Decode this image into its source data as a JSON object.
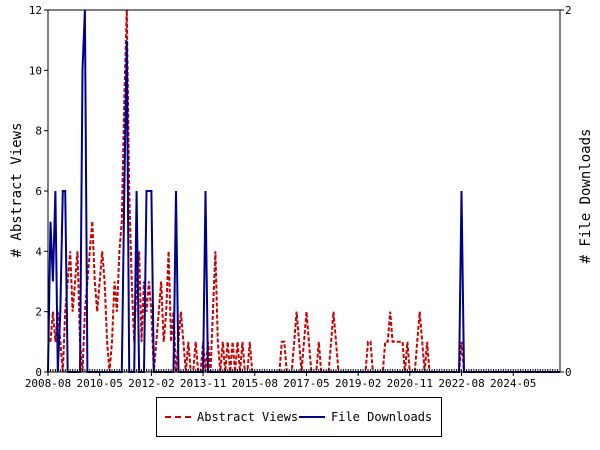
{
  "chart_data": {
    "type": "line",
    "x_ticks": [
      "2008-08",
      "2010-05",
      "2012-02",
      "2013-11",
      "2015-08",
      "2017-05",
      "2019-02",
      "2020-11",
      "2022-08",
      "2024-05"
    ],
    "x_range": [
      "2008-08",
      "2025-12"
    ],
    "ylabel": "# Abstract Views",
    "y2label": "# File Downloads",
    "ylim": [
      0,
      12
    ],
    "y_ticks": [
      0,
      2,
      4,
      6,
      8,
      10,
      12
    ],
    "y2lim": [
      0,
      2
    ],
    "y2_ticks": [
      0,
      2
    ],
    "grid": false,
    "legend_position": "bottom",
    "series": [
      {
        "name": "Abstract Views",
        "axis": "left",
        "color": "#cc0000",
        "style": "dashed",
        "points": [
          [
            "2008-09",
            1
          ],
          [
            "2008-10",
            2
          ],
          [
            "2008-11",
            1
          ],
          [
            "2008-12",
            2
          ],
          [
            "2009-01",
            1
          ],
          [
            "2009-02",
            0
          ],
          [
            "2009-03",
            2
          ],
          [
            "2009-04",
            3
          ],
          [
            "2009-05",
            4
          ],
          [
            "2009-06",
            2
          ],
          [
            "2009-07",
            3
          ],
          [
            "2009-08",
            4
          ],
          [
            "2009-09",
            1
          ],
          [
            "2009-10",
            0
          ],
          [
            "2009-11",
            2
          ],
          [
            "2009-12",
            3
          ],
          [
            "2010-01",
            4
          ],
          [
            "2010-02",
            5
          ],
          [
            "2010-03",
            3
          ],
          [
            "2010-04",
            2
          ],
          [
            "2010-05",
            3
          ],
          [
            "2010-06",
            4
          ],
          [
            "2010-07",
            3
          ],
          [
            "2010-08",
            1
          ],
          [
            "2010-09",
            0
          ],
          [
            "2010-10",
            1
          ],
          [
            "2010-11",
            3
          ],
          [
            "2010-12",
            2
          ],
          [
            "2011-01",
            4
          ],
          [
            "2011-02",
            5
          ],
          [
            "2011-03",
            9
          ],
          [
            "2011-04",
            12
          ],
          [
            "2011-05",
            6
          ],
          [
            "2011-06",
            3
          ],
          [
            "2011-07",
            1
          ],
          [
            "2011-08",
            3
          ],
          [
            "2011-09",
            4
          ],
          [
            "2011-10",
            1
          ],
          [
            "2011-11",
            3
          ],
          [
            "2011-12",
            2
          ],
          [
            "2012-01",
            3
          ],
          [
            "2012-02",
            2
          ],
          [
            "2012-03",
            0
          ],
          [
            "2012-04",
            1
          ],
          [
            "2012-05",
            2
          ],
          [
            "2012-06",
            3
          ],
          [
            "2012-07",
            1
          ],
          [
            "2012-08",
            2
          ],
          [
            "2012-09",
            4
          ],
          [
            "2012-10",
            1
          ],
          [
            "2012-11",
            2
          ],
          [
            "2012-12",
            0
          ],
          [
            "2013-01",
            1
          ],
          [
            "2013-02",
            2
          ],
          [
            "2013-03",
            1
          ],
          [
            "2013-04",
            0
          ],
          [
            "2013-05",
            1
          ],
          [
            "2013-06",
            0
          ],
          [
            "2013-07",
            0
          ],
          [
            "2013-08",
            1
          ],
          [
            "2013-09",
            0
          ],
          [
            "2013-10",
            0
          ],
          [
            "2013-11",
            1
          ],
          [
            "2013-12",
            0
          ],
          [
            "2014-01",
            1
          ],
          [
            "2014-02",
            0
          ],
          [
            "2014-03",
            2
          ],
          [
            "2014-04",
            4
          ],
          [
            "2014-05",
            1
          ],
          [
            "2014-06",
            0
          ],
          [
            "2014-07",
            1
          ],
          [
            "2014-08",
            0
          ],
          [
            "2014-09",
            1
          ],
          [
            "2014-10",
            0
          ],
          [
            "2014-11",
            1
          ],
          [
            "2014-12",
            0
          ],
          [
            "2015-01",
            1
          ],
          [
            "2015-02",
            0
          ],
          [
            "2015-03",
            1
          ],
          [
            "2015-04",
            0
          ],
          [
            "2015-05",
            0
          ],
          [
            "2015-06",
            1
          ],
          [
            "2015-07",
            0
          ],
          [
            "2015-08",
            0
          ],
          [
            "2015-09",
            0
          ],
          [
            "2015-10",
            0
          ],
          [
            "2015-11",
            0
          ],
          [
            "2015-12",
            0
          ],
          [
            "2016-01",
            0
          ],
          [
            "2016-02",
            0
          ],
          [
            "2016-03",
            0
          ],
          [
            "2016-04",
            0
          ],
          [
            "2016-05",
            0
          ],
          [
            "2016-06",
            0
          ],
          [
            "2016-07",
            1
          ],
          [
            "2016-08",
            1
          ],
          [
            "2016-09",
            0
          ],
          [
            "2016-10",
            0
          ],
          [
            "2016-11",
            0
          ],
          [
            "2016-12",
            1
          ],
          [
            "2017-01",
            2
          ],
          [
            "2017-02",
            1
          ],
          [
            "2017-03",
            0
          ],
          [
            "2017-04",
            1
          ],
          [
            "2017-05",
            2
          ],
          [
            "2017-06",
            1
          ],
          [
            "2017-07",
            0
          ],
          [
            "2017-08",
            0
          ],
          [
            "2017-09",
            0
          ],
          [
            "2017-10",
            1
          ],
          [
            "2017-11",
            0
          ],
          [
            "2017-12",
            0
          ],
          [
            "2018-01",
            0
          ],
          [
            "2018-02",
            0
          ],
          [
            "2018-03",
            1
          ],
          [
            "2018-04",
            2
          ],
          [
            "2018-05",
            1
          ],
          [
            "2018-06",
            0
          ],
          [
            "2018-07",
            0
          ],
          [
            "2018-08",
            0
          ],
          [
            "2018-09",
            0
          ],
          [
            "2018-10",
            0
          ],
          [
            "2018-11",
            0
          ],
          [
            "2018-12",
            0
          ],
          [
            "2019-01",
            0
          ],
          [
            "2019-02",
            0
          ],
          [
            "2019-03",
            0
          ],
          [
            "2019-04",
            0
          ],
          [
            "2019-05",
            0
          ],
          [
            "2019-06",
            1
          ],
          [
            "2019-07",
            1
          ],
          [
            "2019-08",
            0
          ],
          [
            "2019-09",
            0
          ],
          [
            "2019-10",
            0
          ],
          [
            "2019-11",
            0
          ],
          [
            "2019-12",
            0
          ],
          [
            "2020-01",
            1
          ],
          [
            "2020-02",
            1
          ],
          [
            "2020-03",
            2
          ],
          [
            "2020-04",
            1
          ],
          [
            "2020-05",
            1
          ],
          [
            "2020-06",
            1
          ],
          [
            "2020-07",
            1
          ],
          [
            "2020-08",
            1
          ],
          [
            "2020-09",
            0
          ],
          [
            "2020-10",
            1
          ],
          [
            "2020-11",
            0
          ],
          [
            "2020-12",
            0
          ],
          [
            "2021-01",
            0
          ],
          [
            "2021-02",
            1
          ],
          [
            "2021-03",
            2
          ],
          [
            "2021-04",
            1
          ],
          [
            "2021-05",
            0
          ],
          [
            "2021-06",
            1
          ],
          [
            "2021-07",
            0
          ],
          [
            "2021-08",
            0
          ],
          [
            "2021-09",
            0
          ],
          [
            "2021-10",
            0
          ],
          [
            "2021-11",
            0
          ],
          [
            "2021-12",
            0
          ],
          [
            "2022-01",
            0
          ],
          [
            "2022-02",
            0
          ],
          [
            "2022-03",
            0
          ],
          [
            "2022-04",
            0
          ],
          [
            "2022-05",
            0
          ],
          [
            "2022-06",
            0
          ],
          [
            "2022-07",
            0
          ],
          [
            "2022-08",
            1
          ],
          [
            "2022-09",
            0
          ],
          [
            "2022-10",
            0
          ]
        ]
      },
      {
        "name": "File Downloads",
        "axis": "right",
        "color": "#00008b",
        "style": "solid",
        "points": [
          [
            "2008-08",
            0
          ],
          [
            "2008-09",
            0.83
          ],
          [
            "2008-10",
            0.5
          ],
          [
            "2008-11",
            1
          ],
          [
            "2008-12",
            0
          ],
          [
            "2009-01",
            0.33
          ],
          [
            "2009-02",
            1
          ],
          [
            "2009-03",
            1
          ],
          [
            "2009-04",
            0
          ],
          [
            "2009-05",
            0
          ],
          [
            "2009-06",
            0
          ],
          [
            "2009-07",
            0
          ],
          [
            "2009-08",
            0
          ],
          [
            "2009-09",
            0
          ],
          [
            "2009-10",
            1.67
          ],
          [
            "2009-11",
            2
          ],
          [
            "2009-12",
            0
          ],
          [
            "2010-01",
            0
          ],
          [
            "2010-02",
            0
          ],
          [
            "2010-03",
            0
          ],
          [
            "2010-04",
            0
          ],
          [
            "2010-05",
            0
          ],
          [
            "2010-06",
            0
          ],
          [
            "2010-07",
            0
          ],
          [
            "2010-08",
            0
          ],
          [
            "2010-09",
            0
          ],
          [
            "2010-10",
            0
          ],
          [
            "2010-11",
            0
          ],
          [
            "2010-12",
            0
          ],
          [
            "2011-01",
            0
          ],
          [
            "2011-02",
            0
          ],
          [
            "2011-03",
            1
          ],
          [
            "2011-04",
            1.83
          ],
          [
            "2011-05",
            0
          ],
          [
            "2011-06",
            0
          ],
          [
            "2011-07",
            0
          ],
          [
            "2011-08",
            1
          ],
          [
            "2011-09",
            0
          ],
          [
            "2011-10",
            0
          ],
          [
            "2011-11",
            0
          ],
          [
            "2011-12",
            1
          ],
          [
            "2012-01",
            1
          ],
          [
            "2012-02",
            1
          ],
          [
            "2012-03",
            0
          ],
          [
            "2012-04",
            0
          ],
          [
            "2012-05",
            0
          ],
          [
            "2012-06",
            0
          ],
          [
            "2012-07",
            0
          ],
          [
            "2012-08",
            0
          ],
          [
            "2012-09",
            0
          ],
          [
            "2012-10",
            0
          ],
          [
            "2012-11",
            0
          ],
          [
            "2012-12",
            1
          ],
          [
            "2013-01",
            0
          ],
          [
            "2013-02",
            0
          ],
          [
            "2013-03",
            0
          ],
          [
            "2013-04",
            0
          ],
          [
            "2013-05",
            0
          ],
          [
            "2013-06",
            0
          ],
          [
            "2013-07",
            0
          ],
          [
            "2013-08",
            0
          ],
          [
            "2013-09",
            0
          ],
          [
            "2013-10",
            0
          ],
          [
            "2013-11",
            0
          ],
          [
            "2013-12",
            1
          ],
          [
            "2014-01",
            0
          ],
          [
            "2014-02",
            0
          ],
          [
            "2014-03",
            0
          ],
          [
            "2014-04",
            0
          ],
          [
            "2014-05",
            0
          ],
          [
            "2022-06",
            0
          ],
          [
            "2022-07",
            0
          ],
          [
            "2022-08",
            1
          ],
          [
            "2022-09",
            0
          ],
          [
            "2022-10",
            0
          ],
          [
            "2025-12",
            0
          ]
        ]
      }
    ]
  }
}
